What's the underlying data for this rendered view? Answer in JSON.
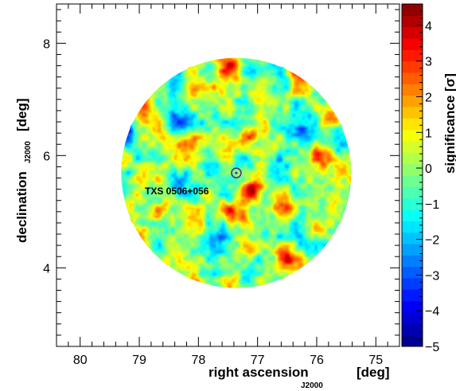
{
  "chart_data": {
    "type": "heatmap",
    "title": "",
    "xlabel": "right ascension",
    "xlabel_subscript": "J2000",
    "xlabel_unit": "[deg]",
    "ylabel": "declination",
    "ylabel_subscript": "J2000",
    "ylabel_unit": "[deg]",
    "colorbar_label": "significance [σ]",
    "xlim": [
      80.4,
      74.6
    ],
    "ylim": [
      2.6,
      8.7
    ],
    "x_inverted": true,
    "x_ticks": [
      80,
      79,
      78,
      77,
      76,
      75
    ],
    "y_ticks": [
      4,
      6,
      8
    ],
    "colorbar_range": [
      -5,
      4.6
    ],
    "colorbar_ticks": [
      -5,
      -4,
      -3,
      -2,
      -1,
      0,
      1,
      2,
      3,
      4
    ],
    "colorscale": [
      "#00007f",
      "#0000ff",
      "#007fff",
      "#00ffff",
      "#7fff7f",
      "#ffff00",
      "#ff7f00",
      "#ff0000",
      "#7f0000"
    ],
    "grid": false,
    "map_center": {
      "ra": 77.36,
      "dec": 5.69
    },
    "map_radius_deg": 2.05,
    "background_sigma_mean": 0.0,
    "source": {
      "name": "TXS 0506+056",
      "ra": 77.36,
      "dec": 5.69,
      "marker": "circle",
      "marker_color": "#5a2a8c"
    },
    "hotspots": [
      {
        "ra": 77.05,
        "dec": 5.4,
        "sigma": 3.6
      },
      {
        "ra": 76.6,
        "dec": 5.1,
        "sigma": 3.2
      },
      {
        "ra": 76.0,
        "dec": 6.0,
        "sigma": 3.5
      },
      {
        "ra": 75.8,
        "dec": 6.7,
        "sigma": 3.6
      },
      {
        "ra": 75.2,
        "dec": 5.3,
        "sigma": 2.6
      },
      {
        "ra": 75.1,
        "dec": 4.9,
        "sigma": 2.4
      },
      {
        "ra": 76.5,
        "dec": 4.2,
        "sigma": 3.1
      },
      {
        "ra": 77.35,
        "dec": 4.95,
        "sigma": 2.6
      },
      {
        "ra": 78.2,
        "dec": 6.2,
        "sigma": 2.8
      },
      {
        "ra": 78.9,
        "dec": 6.9,
        "sigma": 3.0
      },
      {
        "ra": 77.5,
        "dec": 7.6,
        "sigma": 3.0
      },
      {
        "ra": 76.2,
        "dec": 7.5,
        "sigma": 2.9
      },
      {
        "ra": 79.2,
        "dec": 4.5,
        "sigma": 2.8
      },
      {
        "ra": 78.0,
        "dec": 3.6,
        "sigma": 2.5
      },
      {
        "ra": 76.2,
        "dec": 3.6,
        "sigma": 2.6
      },
      {
        "ra": 79.0,
        "dec": 5.3,
        "sigma": 2.4
      },
      {
        "ra": 77.1,
        "dec": 6.4,
        "sigma": 2.5
      }
    ],
    "coldspots": [
      {
        "ra": 76.3,
        "dec": 6.45,
        "sigma": -2.6
      },
      {
        "ra": 79.2,
        "dec": 6.4,
        "sigma": -2.5
      },
      {
        "ra": 78.3,
        "dec": 5.4,
        "sigma": -2.4
      },
      {
        "ra": 77.7,
        "dec": 4.6,
        "sigma": -2.3
      },
      {
        "ra": 75.5,
        "dec": 6.1,
        "sigma": -2.4
      },
      {
        "ra": 78.3,
        "dec": 6.6,
        "sigma": -2.2
      },
      {
        "ra": 76.8,
        "dec": 5.8,
        "sigma": -2.2
      }
    ]
  }
}
